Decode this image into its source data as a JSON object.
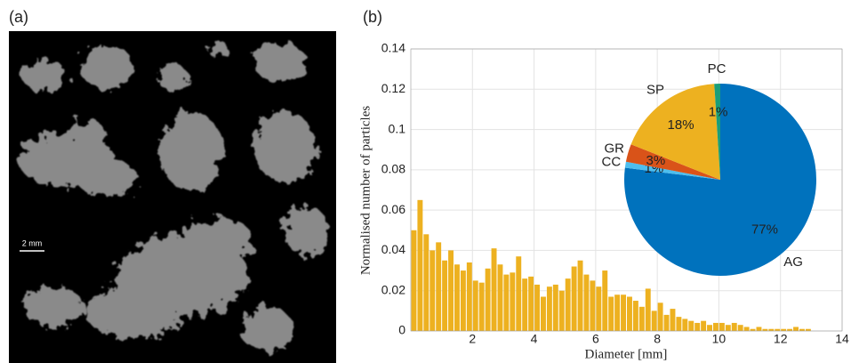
{
  "panels": [
    "(a)",
    "(b)"
  ],
  "scale_bar": "2 mm",
  "chart_data": [
    {
      "type": "histogram",
      "xlabel": "Diameter [mm]",
      "ylabel": "Normalised number of particles",
      "bins": [
        0,
        0.2,
        0.4,
        0.6,
        0.8,
        1,
        1.2,
        1.4,
        1.6,
        1.8,
        2,
        2.2,
        2.4,
        2.6,
        2.8,
        3,
        3.2,
        3.4,
        3.6,
        3.8,
        4,
        4.2,
        4.4,
        4.6,
        4.8,
        5,
        5.2,
        5.4,
        5.6,
        5.8,
        6,
        6.2,
        6.4,
        6.6,
        6.8,
        7,
        7.2,
        7.4,
        7.6,
        7.8,
        8,
        8.2,
        8.4,
        8.6,
        8.8,
        9,
        9.2,
        9.4,
        9.6,
        9.8,
        10,
        10.2,
        10.4,
        10.6,
        10.8,
        11,
        11.2,
        11.4,
        11.6,
        11.8,
        12,
        12.2,
        12.4,
        12.6,
        12.8,
        13
      ],
      "values": [
        0.05,
        0.065,
        0.048,
        0.04,
        0.044,
        0.035,
        0.04,
        0.033,
        0.03,
        0.034,
        0.025,
        0.024,
        0.031,
        0.041,
        0.033,
        0.028,
        0.029,
        0.037,
        0.026,
        0.027,
        0.023,
        0.017,
        0.022,
        0.023,
        0.02,
        0.026,
        0.032,
        0.035,
        0.028,
        0.025,
        0.022,
        0.03,
        0.017,
        0.018,
        0.018,
        0.017,
        0.015,
        0.012,
        0.021,
        0.01,
        0.014,
        0.008,
        0.011,
        0.007,
        0.006,
        0.005,
        0.004,
        0.005,
        0.003,
        0.004,
        0.004,
        0.003,
        0.004,
        0.003,
        0.002,
        0.001,
        0.002,
        0.001,
        0.001,
        0.001,
        0.001,
        0.001,
        0.002,
        0.001,
        0.001
      ],
      "color": "#edb120",
      "xlim": [
        0,
        14
      ],
      "ylim": [
        0,
        0.14
      ],
      "xticks": [
        2,
        4,
        6,
        8,
        10,
        12,
        14
      ],
      "yticks": [
        0,
        0.02,
        0.04,
        0.06,
        0.08,
        0.1,
        0.12,
        0.14
      ],
      "grid": true
    },
    {
      "type": "pie",
      "categories": [
        "AG",
        "CC",
        "GR",
        "SP",
        "PC"
      ],
      "values": [
        77,
        1,
        3,
        18,
        1
      ],
      "value_labels": [
        "77%",
        "1%",
        "3%",
        "18%",
        "1%"
      ],
      "colors": [
        "#0072bd",
        "#4dbeee",
        "#d95319",
        "#edb120",
        "#1a9e7a"
      ]
    }
  ]
}
